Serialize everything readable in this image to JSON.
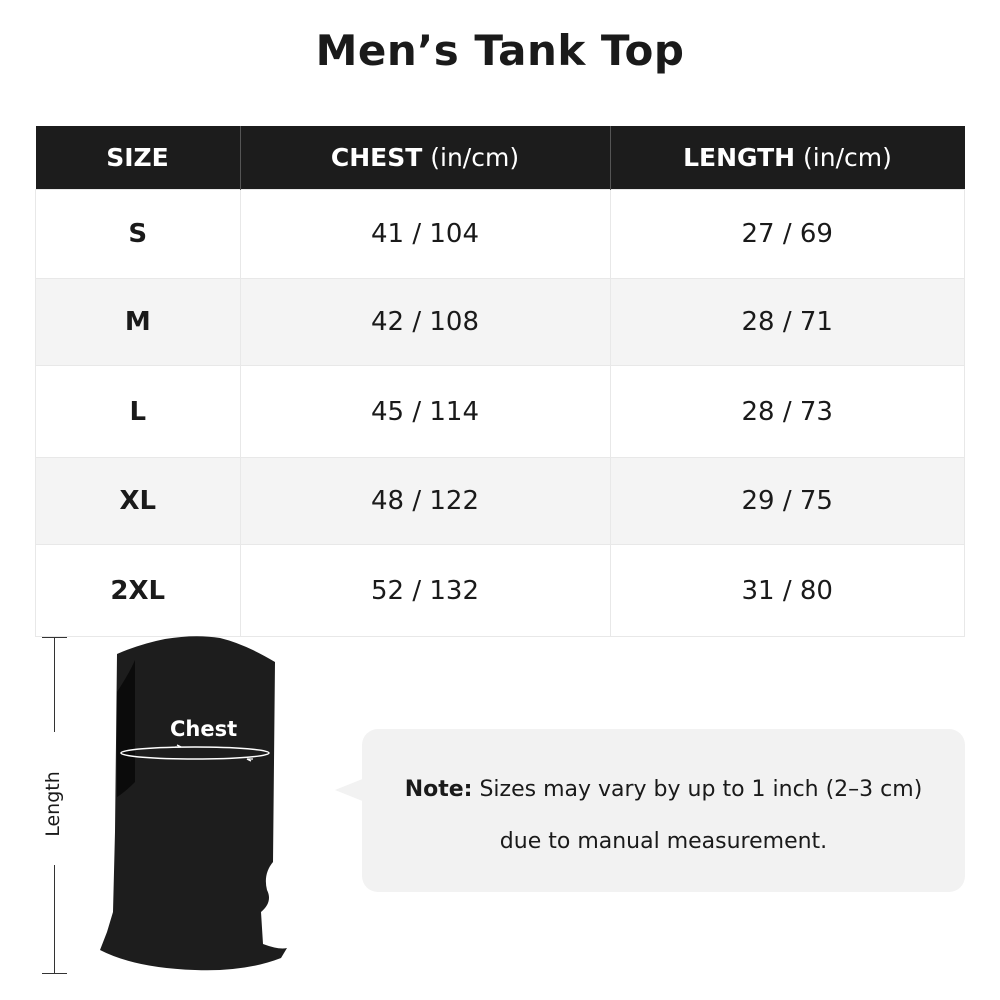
{
  "title": "Men’s Tank Top",
  "table": {
    "headers": [
      {
        "label": "SIZE",
        "unit": ""
      },
      {
        "label": "CHEST",
        "unit": " (in/cm)"
      },
      {
        "label": "LENGTH",
        "unit": " (in/cm)"
      }
    ],
    "rows": [
      {
        "size": "S",
        "chest": "41 / 104",
        "length": "27 / 69"
      },
      {
        "size": "M",
        "chest": "42 / 108",
        "length": "28 / 71"
      },
      {
        "size": "L",
        "chest": "45 / 114",
        "length": "28 / 73"
      },
      {
        "size": "XL",
        "chest": "48 / 122",
        "length": "29 / 75"
      },
      {
        "size": "2XL",
        "chest": "52 / 132",
        "length": "31 / 80"
      }
    ]
  },
  "diagram": {
    "length_label": "Length",
    "chest_label": "Chest"
  },
  "note": {
    "bold": "Note:",
    "line1": " Sizes may vary by up to 1 inch (2–3 cm)",
    "line2": "due to manual measurement."
  },
  "colors": {
    "header_bg": "#1c1c1c",
    "alt_row": "#f4f4f4",
    "note_bg": "#f2f2f2"
  }
}
